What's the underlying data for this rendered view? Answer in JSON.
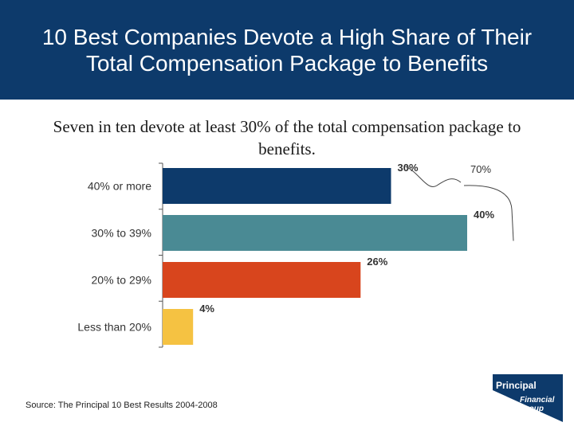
{
  "header": {
    "title": "10 Best Companies Devote a High Share of Their Total Compensation Package to Benefits"
  },
  "subtitle": "Seven in ten devote at least 30% of the total compensation package to benefits.",
  "source": "Source:  The Principal 10 Best Results 2004-2008",
  "logo": {
    "line1": "Principal",
    "line2": "Financial",
    "line3": "Group",
    "color": "#0d3a6b"
  },
  "chart_data": {
    "type": "bar",
    "orientation": "horizontal",
    "categories": [
      "40% or more",
      "30% to 39%",
      "20% to 29%",
      "Less than 20%"
    ],
    "values": [
      30,
      40,
      26,
      4
    ],
    "data_labels": [
      "30%",
      "40%",
      "26%",
      "4%"
    ],
    "colors": [
      "#0d3a6b",
      "#4a8a94",
      "#d8451d",
      "#f5c242"
    ],
    "xlim": [
      0,
      40
    ],
    "annotation": {
      "label": "70%",
      "spans_categories": [
        "40% or more",
        "30% to 39%"
      ]
    }
  }
}
